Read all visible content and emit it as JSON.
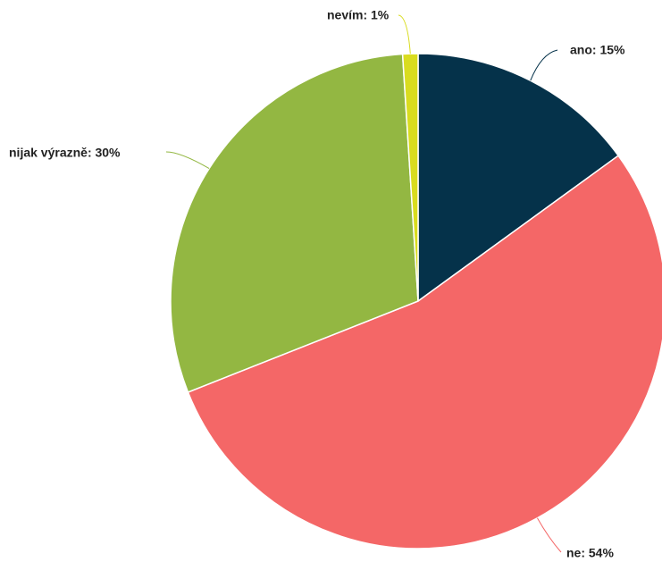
{
  "chart_data": {
    "type": "pie",
    "values": [
      15,
      54,
      30,
      1
    ],
    "value_labels": [
      "ano: 15%",
      "ne: 54%",
      "nijak výrazně: 30%",
      "nevím: 1%"
    ],
    "colors": [
      "#05324a",
      "#f46767",
      "#93b742",
      "#d9dc1f"
    ]
  }
}
